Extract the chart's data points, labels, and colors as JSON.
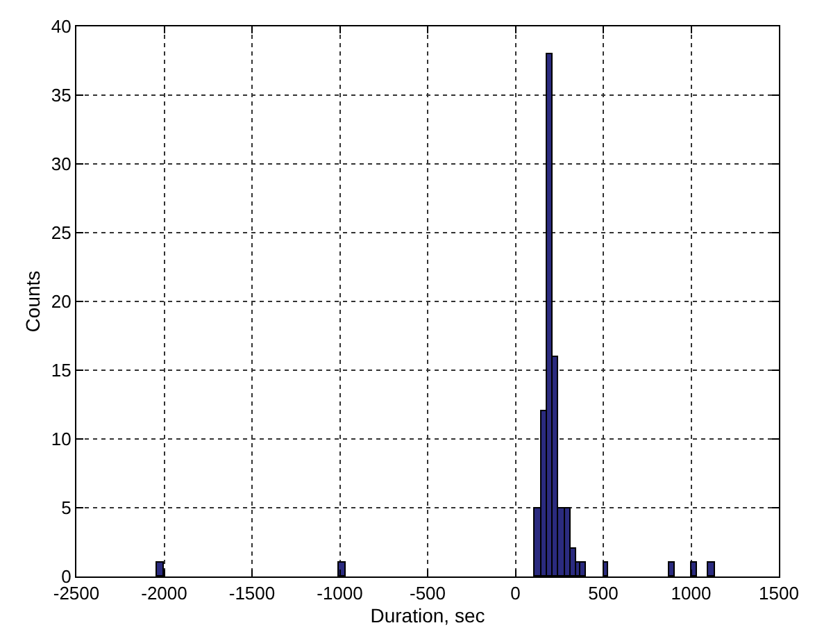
{
  "chart_data": {
    "type": "histogram",
    "xlabel": "Duration, sec",
    "ylabel": "Counts",
    "bins": [
      -2040,
      -2005,
      -1005,
      -970,
      111,
      145,
      179,
      212,
      246,
      280,
      312,
      345,
      373,
      401,
      500,
      531,
      876,
      907,
      1005,
      1036,
      1096,
      1140
    ],
    "values": [
      1,
      0,
      1,
      0,
      5,
      12,
      38,
      16,
      5,
      5,
      2,
      1,
      1,
      0,
      1,
      0,
      1,
      0,
      1,
      0,
      1
    ],
    "color": "#2b2b7f",
    "xlim": [
      -2500,
      1500
    ],
    "xticks": [
      -2500,
      -2000,
      -1500,
      -1000,
      -500,
      0,
      500,
      1000,
      1500
    ],
    "ylim": [
      0,
      40
    ],
    "yticks": [
      0,
      5,
      10,
      15,
      20,
      25,
      30,
      35,
      40
    ],
    "grid": true
  }
}
